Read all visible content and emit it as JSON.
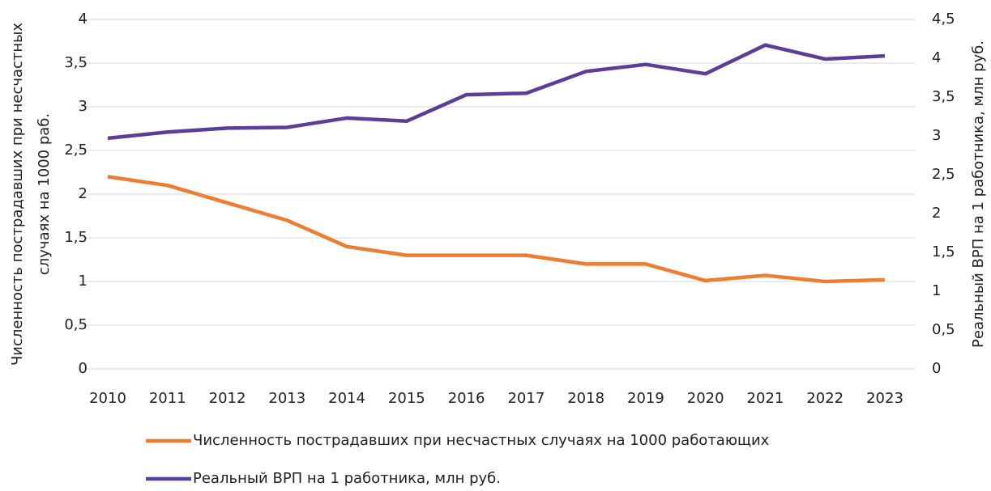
{
  "chart_data": {
    "type": "line",
    "ylabel": [
      "Численность пострадавших при несчастных",
      "случаях на 1000 раб."
    ],
    "y2label": "Реальный ВРП на 1 работника, млн руб.",
    "categories": [
      "2010",
      "2011",
      "2012",
      "2013",
      "2014",
      "2015",
      "2016",
      "2017",
      "2018",
      "2019",
      "2020",
      "2021",
      "2022",
      "2023"
    ],
    "series": [
      {
        "name": "Численность пострадавших при несчастных случаях на 1000 работающих",
        "color": "#ed7d31",
        "axis": "y",
        "values": [
          2.2,
          2.1,
          1.9,
          1.7,
          1.4,
          1.3,
          1.3,
          1.3,
          1.2,
          1.2,
          1.01,
          1.07,
          1.0,
          1.02
        ]
      },
      {
        "name": "Реальный ВРП на 1 работника, млн руб.",
        "color": "#5c3d99",
        "axis": "y2",
        "values": [
          2.97,
          3.05,
          3.1,
          3.11,
          3.23,
          3.19,
          3.53,
          3.55,
          3.83,
          3.92,
          3.8,
          4.17,
          3.99,
          4.03
        ]
      }
    ],
    "ylim": [
      0,
      4
    ],
    "yticks": [
      0,
      {
        "value": 0.5,
        "label": "0,5"
      },
      1,
      {
        "value": 1.5,
        "label": "1,5"
      },
      2,
      {
        "value": 2.5,
        "label": "2,5"
      },
      3,
      {
        "value": 3.5,
        "label": "3,5"
      },
      4
    ],
    "y2lim": [
      0,
      4.5
    ],
    "y2ticks": [
      0,
      {
        "value": 0.5,
        "label": "0,5"
      },
      1,
      {
        "value": 1.5,
        "label": "1,5"
      },
      2,
      {
        "value": 2.5,
        "label": "2,5"
      },
      3,
      {
        "value": 3.5,
        "label": "3,5"
      },
      4,
      {
        "value": 4.5,
        "label": "4,5"
      }
    ],
    "grid": true
  }
}
